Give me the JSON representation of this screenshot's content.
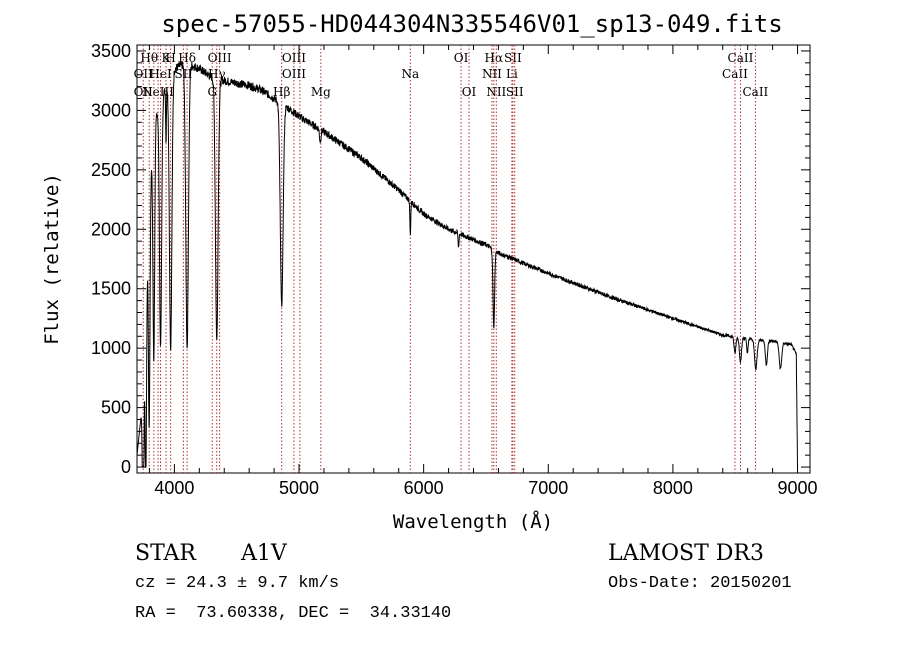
{
  "chart_data": {
    "type": "line",
    "title": "spec-57055-HD044304N335546V01_sp13-049.fits",
    "xlabel": "Wavelength (Å)",
    "ylabel": "Flux (relative)",
    "xlim": [
      3700,
      9100
    ],
    "ylim": [
      -50,
      3550
    ],
    "xticks": [
      4000,
      5000,
      6000,
      7000,
      8000,
      9000
    ],
    "yticks": [
      0,
      500,
      1000,
      1500,
      2000,
      2500,
      3000,
      3500
    ],
    "x_minor_step": 200,
    "y_minor_step": 100,
    "line_color": "#000000",
    "marker_color": "#b03030",
    "continuum": [
      [
        3700,
        100
      ],
      [
        3740,
        500
      ],
      [
        3770,
        1400
      ],
      [
        3800,
        2400
      ],
      [
        3850,
        2950
      ],
      [
        3900,
        3100
      ],
      [
        3950,
        3250
      ],
      [
        4000,
        3350
      ],
      [
        4100,
        3400
      ],
      [
        4200,
        3350
      ],
      [
        4300,
        3280
      ],
      [
        4400,
        3250
      ],
      [
        4500,
        3230
      ],
      [
        4600,
        3210
      ],
      [
        4700,
        3170
      ],
      [
        4800,
        3100
      ],
      [
        4900,
        3030
      ],
      [
        5000,
        2950
      ],
      [
        5200,
        2820
      ],
      [
        5500,
        2600
      ],
      [
        5800,
        2330
      ],
      [
        6000,
        2130
      ],
      [
        6200,
        2000
      ],
      [
        6500,
        1870
      ],
      [
        6600,
        1800
      ],
      [
        7000,
        1630
      ],
      [
        7500,
        1430
      ],
      [
        8000,
        1250
      ],
      [
        8400,
        1110
      ],
      [
        8600,
        1080
      ],
      [
        8800,
        1060
      ],
      [
        8950,
        1030
      ],
      [
        8990,
        950
      ],
      [
        9000,
        0
      ]
    ],
    "absorption": [
      {
        "w": 3750,
        "depth": 1500,
        "width": 8
      },
      {
        "w": 3771,
        "depth": 1600,
        "width": 8
      },
      {
        "w": 3798,
        "depth": 2000,
        "width": 9
      },
      {
        "w": 3835,
        "depth": 1900,
        "width": 10
      },
      {
        "w": 3889,
        "depth": 2050,
        "width": 12
      },
      {
        "w": 3933,
        "depth": 500,
        "width": 4
      },
      {
        "w": 3970,
        "depth": 2300,
        "width": 14
      },
      {
        "w": 4102,
        "depth": 2400,
        "width": 15
      },
      {
        "w": 4340,
        "depth": 2200,
        "width": 15
      },
      {
        "w": 4861,
        "depth": 1700,
        "width": 16
      },
      {
        "w": 5170,
        "depth": 100,
        "width": 8
      },
      {
        "w": 5893,
        "depth": 280,
        "width": 5
      },
      {
        "w": 6280,
        "depth": 120,
        "width": 5
      },
      {
        "w": 6563,
        "depth": 650,
        "width": 9
      },
      {
        "w": 8498,
        "depth": 140,
        "width": 10
      },
      {
        "w": 8542,
        "depth": 200,
        "width": 12
      },
      {
        "w": 8598,
        "depth": 120,
        "width": 8
      },
      {
        "w": 8665,
        "depth": 250,
        "width": 14
      },
      {
        "w": 8750,
        "depth": 200,
        "width": 12
      },
      {
        "w": 8863,
        "depth": 220,
        "width": 14
      }
    ],
    "lines": [
      {
        "w": 3750,
        "top": "",
        "mid": "OII",
        "bot": "OII"
      },
      {
        "w": 3798,
        "top": "Hθ",
        "mid": "",
        "bot": ""
      },
      {
        "w": 3835,
        "top": "",
        "mid": "",
        "bot": ""
      },
      {
        "w": 3869,
        "top": "",
        "mid": "",
        "bot": "NeIII"
      },
      {
        "w": 3889,
        "top": "",
        "mid": "HeI",
        "bot": ""
      },
      {
        "w": 3933,
        "top": "K",
        "mid": "",
        "bot": ""
      },
      {
        "w": 3970,
        "top": "H",
        "mid": "",
        "bot": ""
      },
      {
        "w": 4072,
        "top": "",
        "mid": "SII",
        "bot": ""
      },
      {
        "w": 4102,
        "top": "Hδ",
        "mid": "",
        "bot": ""
      },
      {
        "w": 4304,
        "top": "",
        "mid": "",
        "bot": "G"
      },
      {
        "w": 4340,
        "top": "",
        "mid": "Hγ",
        "bot": ""
      },
      {
        "w": 4363,
        "top": "OIII",
        "mid": "",
        "bot": ""
      },
      {
        "w": 4861,
        "top": "",
        "mid": "",
        "bot": "Hβ"
      },
      {
        "w": 4959,
        "top": "OIII",
        "mid": "OIII",
        "bot": ""
      },
      {
        "w": 5007,
        "top": "",
        "mid": "",
        "bot": ""
      },
      {
        "w": 5175,
        "top": "",
        "mid": "",
        "bot": "Mg"
      },
      {
        "w": 5893,
        "top": "",
        "mid": "Na",
        "bot": ""
      },
      {
        "w": 6300,
        "top": "OI",
        "mid": "",
        "bot": ""
      },
      {
        "w": 6364,
        "top": "",
        "mid": "",
        "bot": "OI"
      },
      {
        "w": 6548,
        "top": "",
        "mid": "NII",
        "bot": ""
      },
      {
        "w": 6563,
        "top": "Hα",
        "mid": "",
        "bot": ""
      },
      {
        "w": 6583,
        "top": "",
        "mid": "",
        "bot": "NII"
      },
      {
        "w": 6708,
        "top": "",
        "mid": "Li",
        "bot": ""
      },
      {
        "w": 6716,
        "top": "SII",
        "mid": "",
        "bot": ""
      },
      {
        "w": 6731,
        "top": "",
        "mid": "",
        "bot": "SII"
      },
      {
        "w": 8498,
        "top": "",
        "mid": "CaII",
        "bot": ""
      },
      {
        "w": 8542,
        "top": "CaII",
        "mid": "",
        "bot": ""
      },
      {
        "w": 8662,
        "top": "",
        "mid": "",
        "bot": "CaII"
      }
    ]
  },
  "info": {
    "object_class": "STAR",
    "subclass": "A1V",
    "survey": "LAMOST DR3",
    "redshift": "cz = 24.3 ± 9.7 km/s",
    "obs_date": "Obs-Date: 20150201",
    "coords": "RA =  73.60338, DEC =  34.33140"
  }
}
